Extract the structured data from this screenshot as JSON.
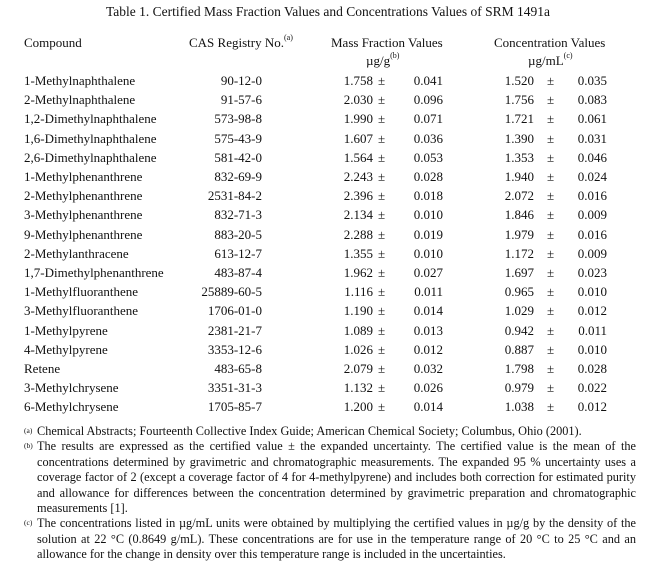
{
  "title": "Table 1.  Certified Mass Fraction Values and Concentrations Values of SRM 1491a",
  "headers": {
    "compound": "Compound",
    "cas": "CAS Registry No.",
    "cas_note": "(a)",
    "mass": "Mass Fraction Values",
    "mass_unit": "µg/g",
    "mass_note": "(b)",
    "conc": "Concentration Values",
    "conc_unit": "µg/mL",
    "conc_note": "(c)"
  },
  "pm": "±",
  "rows": [
    {
      "compound": "1-Methylnaphthalene",
      "cas": "90-12-0",
      "mass": "1.758",
      "mass_u": "0.041",
      "conc": "1.520",
      "conc_u": "0.035"
    },
    {
      "compound": "2-Methylnaphthalene",
      "cas": "91-57-6",
      "mass": "2.030",
      "mass_u": "0.096",
      "conc": "1.756",
      "conc_u": "0.083"
    },
    {
      "compound": "1,2-Dimethylnaphthalene",
      "cas": "573-98-8",
      "mass": "1.990",
      "mass_u": "0.071",
      "conc": "1.721",
      "conc_u": "0.061"
    },
    {
      "compound": "1,6-Dimethylnaphthalene",
      "cas": "575-43-9",
      "mass": "1.607",
      "mass_u": "0.036",
      "conc": "1.390",
      "conc_u": "0.031"
    },
    {
      "compound": "2,6-Dimethylnaphthalene",
      "cas": "581-42-0",
      "mass": "1.564",
      "mass_u": "0.053",
      "conc": "1.353",
      "conc_u": "0.046"
    },
    {
      "compound": "1-Methylphenanthrene",
      "cas": "832-69-9",
      "mass": "2.243",
      "mass_u": "0.028",
      "conc": "1.940",
      "conc_u": "0.024"
    },
    {
      "compound": "2-Methylphenanthrene",
      "cas": "2531-84-2",
      "mass": "2.396",
      "mass_u": "0.018",
      "conc": "2.072",
      "conc_u": "0.016"
    },
    {
      "compound": "3-Methylphenanthrene",
      "cas": "832-71-3",
      "mass": "2.134",
      "mass_u": "0.010",
      "conc": "1.846",
      "conc_u": "0.009"
    },
    {
      "compound": "9-Methylphenanthrene",
      "cas": "883-20-5",
      "mass": "2.288",
      "mass_u": "0.019",
      "conc": "1.979",
      "conc_u": "0.016"
    },
    {
      "compound": "2-Methylanthracene",
      "cas": "613-12-7",
      "mass": "1.355",
      "mass_u": "0.010",
      "conc": "1.172",
      "conc_u": "0.009"
    },
    {
      "compound": "1,7-Dimethylphenanthrene",
      "cas": "483-87-4",
      "mass": "1.962",
      "mass_u": "0.027",
      "conc": "1.697",
      "conc_u": "0.023"
    },
    {
      "compound": "1-Methylfluoranthene",
      "cas": "25889-60-5",
      "mass": "1.116",
      "mass_u": "0.011",
      "conc": "0.965",
      "conc_u": "0.010"
    },
    {
      "compound": "3-Methylfluoranthene",
      "cas": "1706-01-0",
      "mass": "1.190",
      "mass_u": "0.014",
      "conc": "1.029",
      "conc_u": "0.012"
    },
    {
      "compound": "1-Methylpyrene",
      "cas": "2381-21-7",
      "mass": "1.089",
      "mass_u": "0.013",
      "conc": "0.942",
      "conc_u": "0.011"
    },
    {
      "compound": "4-Methylpyrene",
      "cas": "3353-12-6",
      "mass": "1.026",
      "mass_u": "0.012",
      "conc": "0.887",
      "conc_u": "0.010"
    },
    {
      "compound": "Retene",
      "cas": "483-65-8",
      "mass": "2.079",
      "mass_u": "0.032",
      "conc": "1.798",
      "conc_u": "0.028"
    },
    {
      "compound": "3-Methylchrysene",
      "cas": "3351-31-3",
      "mass": "1.132",
      "mass_u": "0.026",
      "conc": "0.979",
      "conc_u": "0.022"
    },
    {
      "compound": "6-Methylchrysene",
      "cas": "1705-85-7",
      "mass": "1.200",
      "mass_u": "0.014",
      "conc": "1.038",
      "conc_u": "0.012"
    }
  ],
  "footnotes": [
    {
      "mark": "(a)",
      "text": "Chemical Abstracts; Fourteenth Collective Index Guide; American Chemical Society; Columbus, Ohio (2001)."
    },
    {
      "mark": "(b)",
      "text": "The results are expressed as the certified value ± the expanded uncertainty.  The certified value is the mean of the concentrations determined by gravimetric and chromatographic measurements.  The expanded 95 % uncertainty uses a coverage factor of 2 (except a coverage factor of 4 for 4-methylpyrene) and includes both correction for estimated purity and allowance for differences between the concentration determined by gravimetric preparation and chromatographic measurements [1]."
    },
    {
      "mark": "(c)",
      "text": "The concentrations listed in µg/mL units were obtained by multiplying the certified values in µg/g by the density of the solution at 22 °C (0.8649 g/mL).  These concentrations are for use in the temperature range of 20 °C to 25 °C and an allowance for the change in density over this temperature range is included in the uncertainties."
    }
  ]
}
